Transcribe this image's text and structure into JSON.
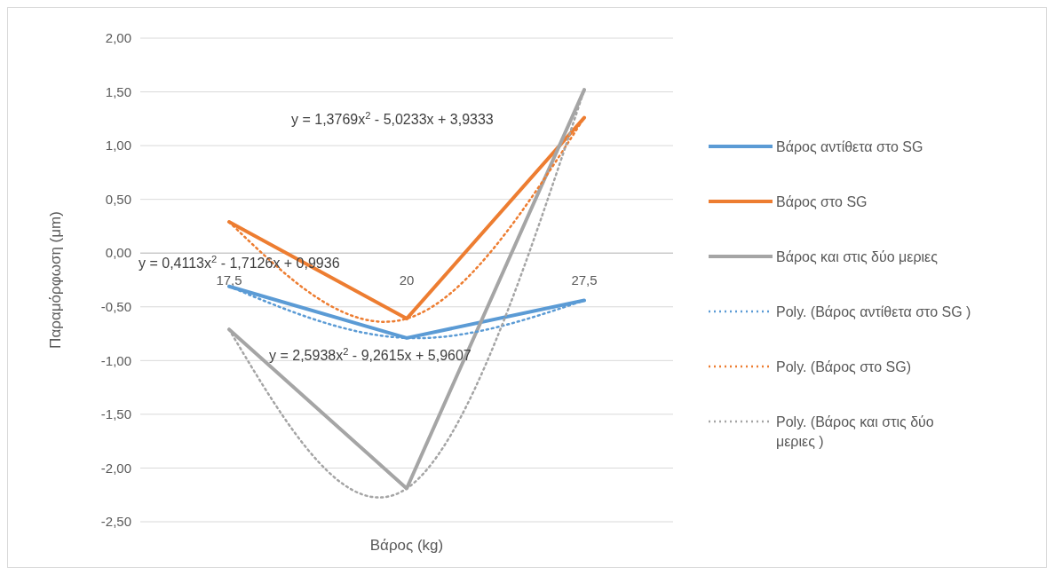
{
  "chart_data": {
    "type": "line",
    "xlabel": "Βάρος (kg)",
    "ylabel": "Παραμόρφωση (μm)",
    "categories": [
      "17,5",
      "20",
      "27,5"
    ],
    "ylim": [
      -2.5,
      2
    ],
    "yticks": [
      {
        "value": -2.5,
        "label": "-2,50"
      },
      {
        "value": -2,
        "label": "-2,00"
      },
      {
        "value": -1.5,
        "label": "-1,50"
      },
      {
        "value": -1,
        "label": "-1,00"
      },
      {
        "value": -0.5,
        "label": "-0,50"
      },
      {
        "value": 0,
        "label": "0,00"
      },
      {
        "value": 0.5,
        "label": "0,50"
      },
      {
        "value": 1,
        "label": "1,00"
      },
      {
        "value": 1.5,
        "label": "1,50"
      },
      {
        "value": 2,
        "label": "2,00"
      }
    ],
    "grid": "y",
    "legend": "right",
    "marker": "none",
    "series": [
      {
        "name": "Βάρος αντίθετα στο SG",
        "color": "#5b9bd5",
        "values": [
          -0.31,
          -0.79,
          -0.44
        ],
        "line_style": "solid"
      },
      {
        "name": "Βάρος στο SG",
        "color": "#ed7d31",
        "values": [
          0.29,
          -0.61,
          1.26
        ],
        "line_style": "solid"
      },
      {
        "name": "Βάρος και στις δύο μεριες",
        "color": "#a5a5a5",
        "values": [
          -0.71,
          -2.19,
          1.52
        ],
        "line_style": "solid"
      },
      {
        "name": "Poly. (Βάρος αντίθετα στο SG )",
        "color": "#5b9bd5",
        "values": [
          -0.31,
          -0.79,
          -0.44
        ],
        "line_style": "dotted"
      },
      {
        "name": "Poly. (Βάρος στο SG)",
        "color": "#ed7d31",
        "values": [
          0.29,
          -0.61,
          1.26
        ],
        "line_style": "dotted"
      },
      {
        "name": "Poly. (Βάρος και στις δύο μεριες )",
        "color": "#a5a5a5",
        "values": [
          -0.71,
          -2.19,
          1.52
        ],
        "line_style": "dotted"
      }
    ],
    "annotations": [
      "y = 0,4113x$^{2}$ - 1,7126x + 0,9936",
      "y = 1,3769x$^{2}$ - 5,0233x + 3,9333",
      "y = 2,5938x$^{2}$ - 9,2615x + 5,9607"
    ]
  }
}
